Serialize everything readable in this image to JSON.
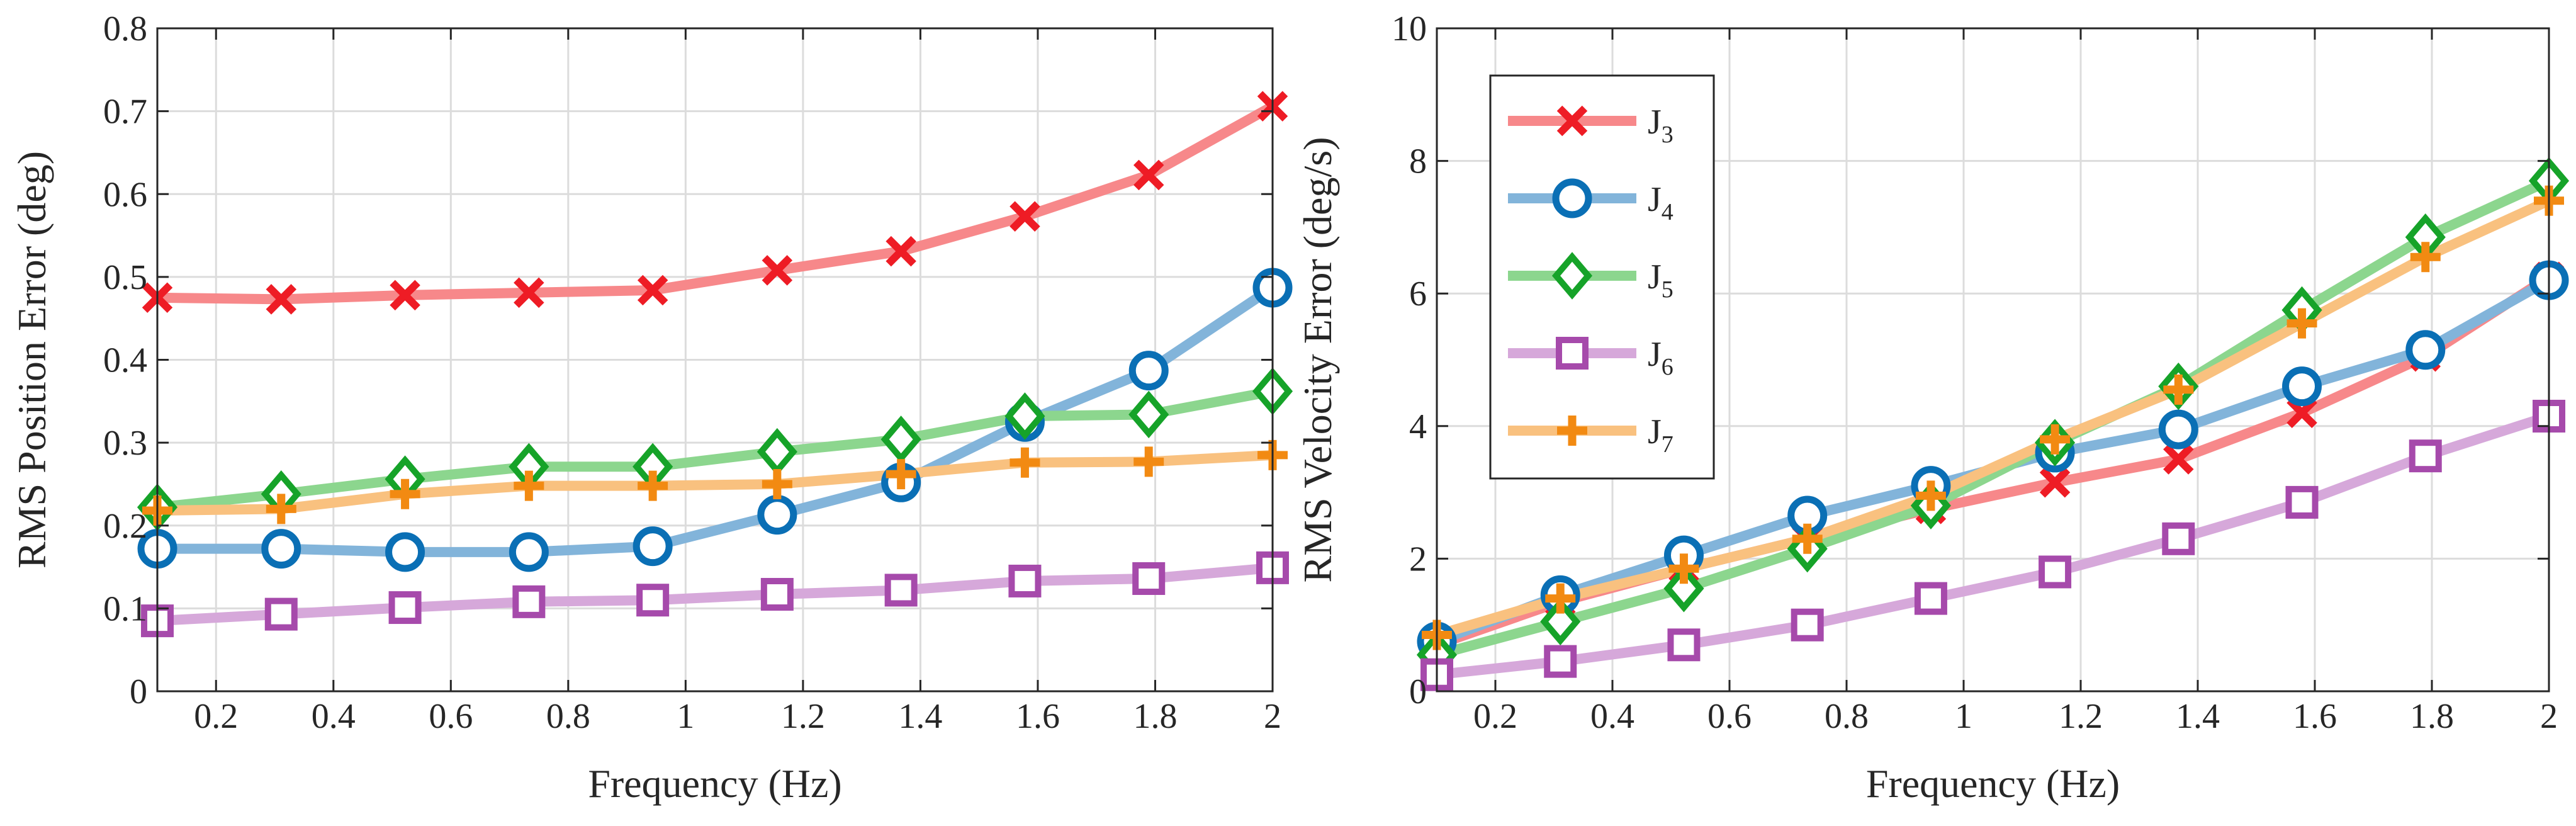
{
  "chart_data": [
    {
      "type": "line",
      "title": "",
      "xlabel": "Frequency (Hz)",
      "ylabel": "RMS Position Error (deg)",
      "xlim": [
        0.1,
        2.0
      ],
      "ylim": [
        0,
        0.8
      ],
      "xticks": [
        0.2,
        0.4,
        0.6,
        0.8,
        1,
        1.2,
        1.4,
        1.6,
        1.8,
        2
      ],
      "xtick_labels": [
        "0.2",
        "0.4",
        "0.6",
        "0.8",
        "1",
        "1.2",
        "1.4",
        "1.6",
        "1.8",
        "2"
      ],
      "yticks": [
        0,
        0.1,
        0.2,
        0.3,
        0.4,
        0.5,
        0.6,
        0.7,
        0.8
      ],
      "ytick_labels": [
        "0",
        "0.1",
        "0.2",
        "0.3",
        "0.4",
        "0.5",
        "0.6",
        "0.7",
        "0.8"
      ],
      "grid": true,
      "legend": false,
      "x": [
        0.1,
        0.311,
        0.522,
        0.733,
        0.944,
        1.156,
        1.367,
        1.578,
        1.789,
        2.0
      ],
      "series": [
        {
          "name": "J3",
          "values": [
            0.475,
            0.473,
            0.478,
            0.481,
            0.484,
            0.508,
            0.531,
            0.573,
            0.623,
            0.706
          ]
        },
        {
          "name": "J4",
          "values": [
            0.172,
            0.172,
            0.168,
            0.168,
            0.175,
            0.213,
            0.252,
            0.325,
            0.387,
            0.487
          ]
        },
        {
          "name": "J5",
          "values": [
            0.222,
            0.238,
            0.256,
            0.271,
            0.271,
            0.289,
            0.304,
            0.332,
            0.334,
            0.362
          ]
        },
        {
          "name": "J6",
          "values": [
            0.085,
            0.093,
            0.101,
            0.108,
            0.11,
            0.117,
            0.122,
            0.133,
            0.136,
            0.149
          ]
        },
        {
          "name": "J7",
          "values": [
            0.218,
            0.22,
            0.238,
            0.248,
            0.248,
            0.25,
            0.262,
            0.276,
            0.277,
            0.285
          ]
        }
      ]
    },
    {
      "type": "line",
      "title": "",
      "xlabel": "Frequency (Hz)",
      "ylabel": "RMS Velocity Error (deg/s)",
      "xlim": [
        0.1,
        2.0
      ],
      "ylim": [
        0,
        10
      ],
      "xticks": [
        0.2,
        0.4,
        0.6,
        0.8,
        1,
        1.2,
        1.4,
        1.6,
        1.8,
        2
      ],
      "xtick_labels": [
        "0.2",
        "0.4",
        "0.6",
        "0.8",
        "1",
        "1.2",
        "1.4",
        "1.6",
        "1.8",
        "2"
      ],
      "yticks": [
        0,
        2,
        4,
        6,
        8,
        10
      ],
      "ytick_labels": [
        "0",
        "2",
        "4",
        "6",
        "8",
        "10"
      ],
      "grid": true,
      "legend": true,
      "legend_position": "top-left",
      "x": [
        0.1,
        0.311,
        0.522,
        0.733,
        0.944,
        1.156,
        1.367,
        1.578,
        1.789,
        2.0
      ],
      "series": [
        {
          "name": "J3",
          "values": [
            0.7,
            1.35,
            1.85,
            2.3,
            2.75,
            3.15,
            3.5,
            4.2,
            5.05,
            6.25
          ]
        },
        {
          "name": "J4",
          "values": [
            0.75,
            1.45,
            2.05,
            2.65,
            3.1,
            3.6,
            3.95,
            4.6,
            5.15,
            6.2
          ]
        },
        {
          "name": "J5",
          "values": [
            0.55,
            1.05,
            1.55,
            2.15,
            2.8,
            3.75,
            4.6,
            5.75,
            6.85,
            7.7
          ]
        },
        {
          "name": "J6",
          "values": [
            0.25,
            0.45,
            0.7,
            1.0,
            1.4,
            1.8,
            2.3,
            2.85,
            3.55,
            4.15
          ]
        },
        {
          "name": "J7",
          "values": [
            0.85,
            1.4,
            1.85,
            2.3,
            2.95,
            3.8,
            4.55,
            5.55,
            6.55,
            7.4
          ]
        }
      ]
    }
  ],
  "legend": {
    "entries": [
      {
        "base": "J",
        "sub": "3"
      },
      {
        "base": "J",
        "sub": "4"
      },
      {
        "base": "J",
        "sub": "5"
      },
      {
        "base": "J",
        "sub": "6"
      },
      {
        "base": "J",
        "sub": "7"
      }
    ]
  },
  "styles": {
    "J3": {
      "line": "#F7888A",
      "marker": "cross",
      "marker_color": "#EE1C25"
    },
    "J4": {
      "line": "#82B4DA",
      "marker": "circle",
      "marker_color": "#0A6FB5"
    },
    "J5": {
      "line": "#8CD68E",
      "marker": "diamond",
      "marker_color": "#16A329"
    },
    "J6": {
      "line": "#D6A8DA",
      "marker": "square",
      "marker_color": "#A64AAB"
    },
    "J7": {
      "line": "#F9C17F",
      "marker": "plus",
      "marker_color": "#F28A12"
    }
  }
}
